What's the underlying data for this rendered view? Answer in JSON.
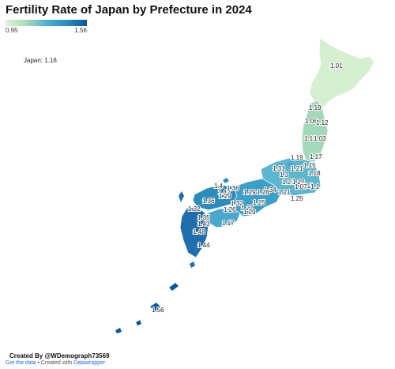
{
  "title": "Fertility Rate of Japan by Prefecture in 2024",
  "legend": {
    "min": "0.95",
    "max": "1.56",
    "colors": [
      "#e0f3db",
      "#a8ddb5",
      "#4eb3d3",
      "#2b8cbe",
      "#08589e"
    ]
  },
  "national": "Japan: 1.16",
  "credit": "Created By @WDemograph73569",
  "footer": {
    "get_data": "Get the data",
    "separator": " • Created with ",
    "datawrapper": "Datawrapper"
  },
  "map_labels": [
    "1.01",
    "1.19",
    "1.06",
    "1.12",
    "1.18",
    "1.03",
    "1.17",
    "1.19",
    "1.31",
    "1.21",
    "1.15",
    "1.3",
    "1.18",
    "1.27",
    "1.29",
    "1.11",
    "1.07",
    "1.1",
    "1.34",
    "1.25",
    "1.21",
    "1.28",
    "1.29",
    "1.4",
    "1.42",
    "1.36",
    "1.29",
    "1.36",
    "1.32",
    "1.27",
    "1.26",
    "1.29",
    "1.17",
    "1.25",
    "1.22",
    "1.35",
    "1.43",
    "1.48",
    "1.44",
    "1.56"
  ]
}
